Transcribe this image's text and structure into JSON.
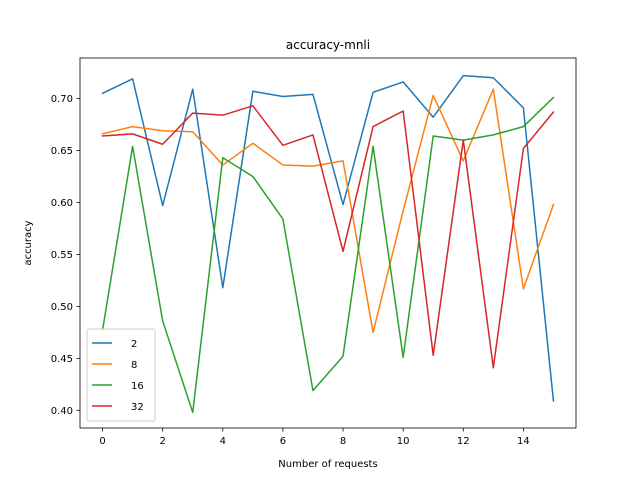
{
  "chart_data": {
    "type": "line",
    "title": "accuracy-mnli",
    "xlabel": "Number of requests",
    "ylabel": "accuracy",
    "x": [
      0,
      1,
      2,
      3,
      4,
      5,
      6,
      7,
      8,
      9,
      10,
      11,
      12,
      13,
      14,
      15
    ],
    "xlim": [
      -0.75,
      15.75
    ],
    "ylim": [
      0.383,
      0.739
    ],
    "xticks": [
      0,
      2,
      4,
      6,
      8,
      10,
      12,
      14
    ],
    "yticks": [
      0.4,
      0.45,
      0.5,
      0.55,
      0.6,
      0.65,
      0.7
    ],
    "ytick_labels": [
      "0.40",
      "0.45",
      "0.50",
      "0.55",
      "0.60",
      "0.65",
      "0.70"
    ],
    "grid": false,
    "legend_position": "lower-left",
    "series": [
      {
        "name": "2",
        "color": "#1f77b4",
        "values": [
          0.705,
          0.719,
          0.597,
          0.709,
          0.518,
          0.707,
          0.702,
          0.704,
          0.598,
          0.706,
          0.716,
          0.682,
          0.722,
          0.72,
          0.691,
          0.409
        ]
      },
      {
        "name": "8",
        "color": "#ff7f0e",
        "values": [
          0.666,
          0.673,
          0.669,
          0.668,
          0.636,
          0.657,
          0.636,
          0.635,
          0.64,
          0.475,
          0.592,
          0.703,
          0.64,
          0.709,
          0.517,
          0.598
        ]
      },
      {
        "name": "16",
        "color": "#2ca02c",
        "values": [
          0.477,
          0.654,
          0.486,
          0.398,
          0.643,
          0.625,
          0.584,
          0.419,
          0.452,
          0.654,
          0.451,
          0.664,
          0.66,
          0.665,
          0.673,
          0.701
        ]
      },
      {
        "name": "32",
        "color": "#d62728",
        "values": [
          0.664,
          0.666,
          0.656,
          0.686,
          0.684,
          0.693,
          0.655,
          0.665,
          0.553,
          0.673,
          0.688,
          0.453,
          0.66,
          0.441,
          0.652,
          0.687
        ]
      }
    ]
  }
}
